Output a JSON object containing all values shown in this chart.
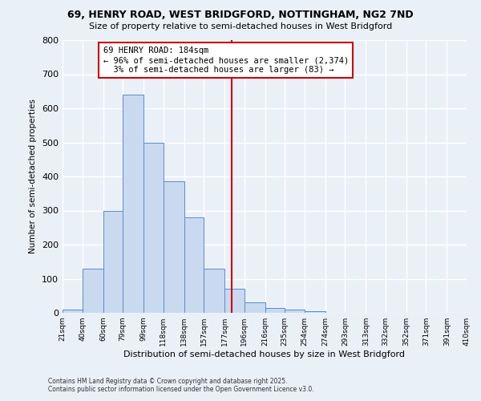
{
  "title": "69, HENRY ROAD, WEST BRIDGFORD, NOTTINGHAM, NG2 7ND",
  "subtitle": "Size of property relative to semi-detached houses in West Bridgford",
  "xlabel": "Distribution of semi-detached houses by size in West Bridgford",
  "ylabel": "Number of semi-detached properties",
  "property_label": "69 HENRY ROAD: 184sqm",
  "pct_smaller": 96,
  "count_smaller": 2374,
  "pct_larger": 3,
  "count_larger": 83,
  "bin_labels": [
    "21sqm",
    "40sqm",
    "60sqm",
    "79sqm",
    "99sqm",
    "118sqm",
    "138sqm",
    "157sqm",
    "177sqm",
    "196sqm",
    "216sqm",
    "235sqm",
    "254sqm",
    "274sqm",
    "293sqm",
    "313sqm",
    "332sqm",
    "352sqm",
    "371sqm",
    "391sqm",
    "410sqm"
  ],
  "bin_edges": [
    21,
    40,
    60,
    79,
    99,
    118,
    138,
    157,
    177,
    196,
    216,
    235,
    254,
    274,
    293,
    313,
    332,
    352,
    371,
    391,
    410
  ],
  "bar_heights": [
    10,
    130,
    300,
    640,
    500,
    385,
    280,
    130,
    70,
    30,
    15,
    10,
    5,
    0,
    0,
    0,
    0,
    0,
    0,
    0
  ],
  "bar_color": "#c9d9f0",
  "bar_edge_color": "#5b8dc8",
  "vline_color": "#cc0000",
  "vline_x": 184,
  "ylim": [
    0,
    800
  ],
  "yticks": [
    0,
    100,
    200,
    300,
    400,
    500,
    600,
    700,
    800
  ],
  "background_color": "#eaf0f8",
  "grid_color": "#ffffff",
  "footer_line1": "Contains HM Land Registry data © Crown copyright and database right 2025.",
  "footer_line2": "Contains public sector information licensed under the Open Government Licence v3.0."
}
